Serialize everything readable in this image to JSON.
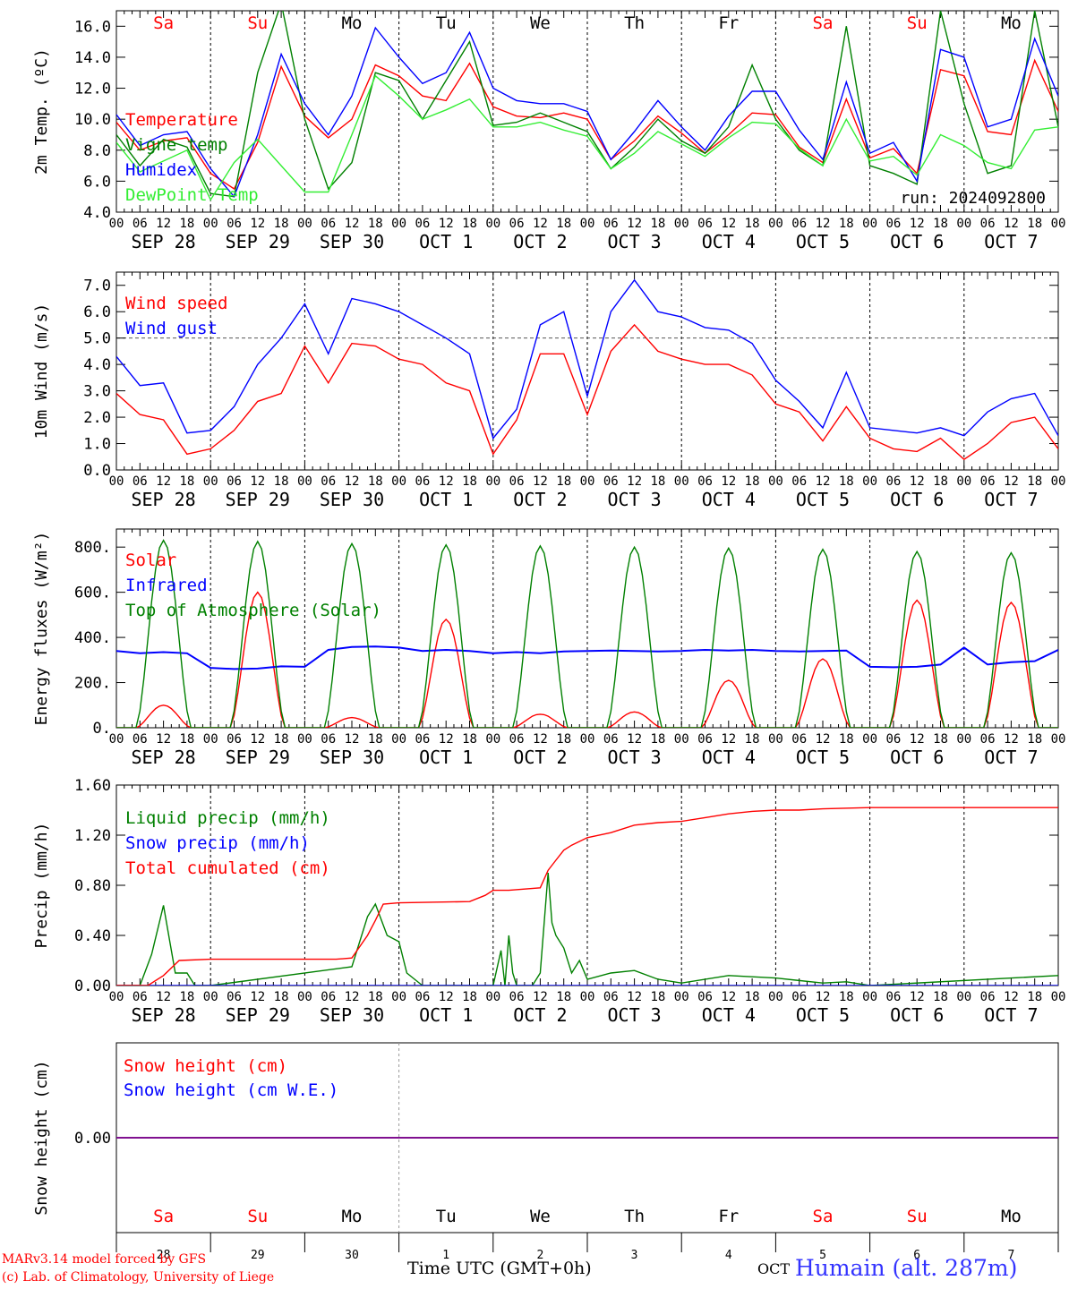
{
  "run_label": "run: 2024092800",
  "station_label": "Humain (alt. 287m)",
  "month_label": "OCT",
  "xlabel": "Time UTC (GMT+0h)",
  "credit_lines": [
    "MARv3.14 model forced by GFS",
    "(c) Lab. of Climatology, University of Liege"
  ],
  "colors": {
    "red": "#ff0000",
    "blue": "#0000ff",
    "darkgreen": "#008000",
    "lightgreen": "#33ee33",
    "purple": "#800080"
  },
  "days": [
    {
      "abbr": "Sa",
      "date": "SEP 28",
      "num": "28",
      "weekend": true
    },
    {
      "abbr": "Su",
      "date": "SEP 29",
      "num": "29",
      "weekend": true
    },
    {
      "abbr": "Mo",
      "date": "SEP 30",
      "num": "30",
      "weekend": false
    },
    {
      "abbr": "Tu",
      "date": "OCT  1",
      "num": "1",
      "weekend": false
    },
    {
      "abbr": "We",
      "date": "OCT  2",
      "num": "2",
      "weekend": false
    },
    {
      "abbr": "Th",
      "date": "OCT  3",
      "num": "3",
      "weekend": false
    },
    {
      "abbr": "Fr",
      "date": "OCT  4",
      "num": "4",
      "weekend": false
    },
    {
      "abbr": "Sa",
      "date": "OCT  5",
      "num": "5",
      "weekend": true
    },
    {
      "abbr": "Su",
      "date": "OCT  6",
      "num": "6",
      "weekend": true
    },
    {
      "abbr": "Mo",
      "date": "OCT  7",
      "num": "7",
      "weekend": false
    }
  ],
  "hour_ticks": [
    "00",
    "06",
    "12",
    "18"
  ],
  "chart_data": [
    {
      "type": "line",
      "ylabel": "2m Temp. (ºC)",
      "ylim": [
        4,
        17
      ],
      "yticks": [
        4,
        6,
        8,
        10,
        12,
        14,
        16
      ],
      "ytick_labels": [
        "4.0",
        "6.0",
        "8.0",
        "10.0",
        "12.0",
        "14.0",
        "16.0"
      ],
      "x_unit": "hours since SEP 28 00 UTC",
      "series": [
        {
          "name": "Temperature",
          "color": "#ff0000",
          "x": [
            0,
            6,
            12,
            18,
            24,
            30,
            36,
            42,
            48,
            54,
            60,
            66,
            72,
            78,
            84,
            90,
            96,
            102,
            108,
            114,
            120,
            126,
            132,
            138,
            144,
            150,
            156,
            162,
            168,
            174,
            180,
            186,
            192,
            198,
            204,
            210,
            216,
            222,
            228,
            234,
            240
          ],
          "y": [
            9.8,
            8.0,
            8.6,
            8.8,
            6.5,
            5.5,
            8.5,
            13.4,
            10.2,
            8.8,
            10.0,
            13.5,
            12.8,
            11.5,
            11.2,
            13.6,
            10.8,
            10.2,
            10.1,
            10.4,
            10.0,
            7.4,
            8.6,
            10.2,
            9.1,
            7.8,
            9.0,
            10.4,
            10.3,
            8.2,
            7.2,
            11.3,
            7.5,
            8.1,
            6.5,
            13.2,
            12.8,
            9.2,
            9.0,
            13.8,
            10.5
          ]
        },
        {
          "name": "Vigne temp",
          "color": "#008000",
          "x": [
            0,
            6,
            12,
            18,
            24,
            30,
            36,
            42,
            48,
            54,
            60,
            66,
            72,
            78,
            84,
            90,
            96,
            102,
            108,
            114,
            120,
            126,
            132,
            138,
            144,
            150,
            156,
            162,
            168,
            174,
            180,
            186,
            192,
            198,
            204,
            210,
            216,
            222,
            228,
            234,
            240
          ],
          "y": [
            9.0,
            7.0,
            8.7,
            8.2,
            5.2,
            5.0,
            13.0,
            17.5,
            10.0,
            5.5,
            7.2,
            13.0,
            12.5,
            10.0,
            12.5,
            15.0,
            9.6,
            9.8,
            10.4,
            9.8,
            9.2,
            6.8,
            8.2,
            10.0,
            8.6,
            7.8,
            9.5,
            13.5,
            10.0,
            8.0,
            7.0,
            16.0,
            7.0,
            6.5,
            5.8,
            17.0,
            11.0,
            6.5,
            7.0,
            17.0,
            9.5
          ]
        },
        {
          "name": "Humidex",
          "color": "#0000ff",
          "x": [
            0,
            6,
            12,
            18,
            24,
            30,
            36,
            42,
            48,
            54,
            60,
            66,
            72,
            78,
            84,
            90,
            96,
            102,
            108,
            114,
            120,
            126,
            132,
            138,
            144,
            150,
            156,
            162,
            168,
            174,
            180,
            186,
            192,
            198,
            204,
            210,
            216,
            222,
            228,
            234,
            240
          ],
          "y": [
            10.3,
            8.3,
            9.0,
            9.2,
            6.8,
            5.0,
            9.0,
            14.2,
            11.0,
            9.0,
            11.5,
            15.9,
            14.0,
            12.3,
            13.0,
            15.6,
            12.0,
            11.2,
            11.0,
            11.0,
            10.5,
            7.4,
            9.2,
            11.2,
            9.5,
            8.0,
            10.2,
            11.8,
            11.8,
            9.3,
            7.4,
            12.4,
            7.8,
            8.5,
            6.0,
            14.5,
            14.0,
            9.5,
            10.0,
            15.2,
            11.5
          ]
        },
        {
          "name": "DewPoint Temp",
          "color": "#33ee33",
          "x": [
            0,
            6,
            12,
            18,
            24,
            30,
            36,
            42,
            48,
            54,
            60,
            66,
            72,
            78,
            84,
            90,
            96,
            102,
            108,
            114,
            120,
            126,
            132,
            138,
            144,
            150,
            156,
            162,
            168,
            174,
            180,
            186,
            192,
            198,
            204,
            210,
            216,
            222,
            228,
            234,
            240
          ],
          "y": [
            8.5,
            6.6,
            7.3,
            8.0,
            4.8,
            7.2,
            8.7,
            7.0,
            5.3,
            5.3,
            9.0,
            12.8,
            11.5,
            10.0,
            10.6,
            11.3,
            9.5,
            9.5,
            9.8,
            9.3,
            8.9,
            6.8,
            7.8,
            9.2,
            8.4,
            7.6,
            8.8,
            9.8,
            9.7,
            8.1,
            7.0,
            10.0,
            7.3,
            7.6,
            6.4,
            9.0,
            8.3,
            7.2,
            6.8,
            9.3,
            9.5
          ]
        }
      ]
    },
    {
      "type": "line",
      "ylabel": "10m Wind (m/s)",
      "ylim": [
        0,
        7.5
      ],
      "yticks": [
        0,
        1,
        2,
        3,
        4,
        5,
        6,
        7
      ],
      "ytick_labels": [
        "0.0",
        "1.0",
        "2.0",
        "3.0",
        "4.0",
        "5.0",
        "6.0",
        "7.0"
      ],
      "ref_line": 5.0,
      "x_unit": "hours since SEP 28 00 UTC",
      "series": [
        {
          "name": "Wind speed",
          "color": "#ff0000",
          "x": [
            0,
            6,
            12,
            18,
            24,
            30,
            36,
            42,
            48,
            54,
            60,
            66,
            72,
            78,
            84,
            90,
            96,
            102,
            108,
            114,
            120,
            126,
            132,
            138,
            144,
            150,
            156,
            162,
            168,
            174,
            180,
            186,
            192,
            198,
            204,
            210,
            216,
            222,
            228,
            234,
            240
          ],
          "y": [
            2.9,
            2.1,
            1.9,
            0.6,
            0.8,
            1.5,
            2.6,
            2.9,
            4.7,
            3.3,
            4.8,
            4.7,
            4.2,
            4.0,
            3.3,
            3.0,
            0.6,
            1.9,
            4.4,
            4.4,
            2.1,
            4.5,
            5.5,
            4.5,
            4.2,
            4.0,
            4.0,
            3.6,
            2.5,
            2.2,
            1.1,
            2.4,
            1.2,
            0.8,
            0.7,
            1.2,
            0.4,
            1.0,
            1.8,
            2.0,
            0.8
          ]
        },
        {
          "name": "Wind gust",
          "color": "#0000ff",
          "x": [
            0,
            6,
            12,
            18,
            24,
            30,
            36,
            42,
            48,
            54,
            60,
            66,
            72,
            78,
            84,
            90,
            96,
            102,
            108,
            114,
            120,
            126,
            132,
            138,
            144,
            150,
            156,
            162,
            168,
            174,
            180,
            186,
            192,
            198,
            204,
            210,
            216,
            222,
            228,
            234,
            240
          ],
          "y": [
            4.3,
            3.2,
            3.3,
            1.4,
            1.5,
            2.4,
            4.0,
            5.0,
            6.3,
            4.4,
            6.5,
            6.3,
            6.0,
            5.5,
            5.0,
            4.4,
            1.2,
            2.3,
            5.5,
            6.0,
            2.8,
            6.0,
            7.2,
            6.0,
            5.8,
            5.4,
            5.3,
            4.8,
            3.4,
            2.6,
            1.6,
            3.7,
            1.6,
            1.5,
            1.4,
            1.6,
            1.3,
            2.2,
            2.7,
            2.9,
            1.3
          ]
        }
      ]
    },
    {
      "type": "line",
      "ylabel": "Energy fluxes (W/m²)",
      "ylim": [
        0,
        880
      ],
      "yticks": [
        0,
        200,
        400,
        600,
        800
      ],
      "ytick_labels": [
        "0.",
        "200.",
        "400.",
        "600.",
        "800."
      ],
      "x_unit": "hours since SEP 28 00 UTC",
      "series": [
        {
          "name": "Solar",
          "color": "#ff0000",
          "day_peaks": [
            100,
            600,
            45,
            480,
            60,
            70,
            210,
            305,
            565,
            555
          ]
        },
        {
          "name": "Infrared",
          "color": "#0000ff",
          "x": [
            0,
            6,
            12,
            18,
            24,
            30,
            36,
            42,
            48,
            54,
            60,
            66,
            72,
            78,
            84,
            90,
            96,
            102,
            108,
            114,
            120,
            126,
            132,
            138,
            144,
            150,
            156,
            162,
            168,
            174,
            180,
            186,
            192,
            198,
            204,
            210,
            216,
            222,
            228,
            234,
            240
          ],
          "y": [
            340,
            330,
            335,
            330,
            265,
            260,
            262,
            272,
            270,
            345,
            358,
            360,
            355,
            340,
            345,
            340,
            330,
            335,
            330,
            338,
            340,
            342,
            340,
            338,
            340,
            345,
            342,
            345,
            340,
            338,
            340,
            342,
            270,
            268,
            270,
            280,
            355,
            280,
            290,
            295,
            345
          ]
        },
        {
          "name": "Top of Atmosphere (Solar)",
          "color": "#008000",
          "day_peaks": [
            830,
            825,
            815,
            810,
            805,
            800,
            795,
            790,
            780,
            775
          ]
        }
      ]
    },
    {
      "type": "line",
      "ylabel": "Precip (mm/h)",
      "ylim": [
        0,
        1.6
      ],
      "yticks": [
        0,
        0.4,
        0.8,
        1.2,
        1.6
      ],
      "ytick_labels": [
        "0.00",
        "0.40",
        "0.80",
        "1.20",
        "1.60"
      ],
      "x_unit": "hours since SEP 28 00 UTC",
      "series": [
        {
          "name": "Liquid precip (mm/h)",
          "color": "#008000",
          "x": [
            0,
            6,
            9,
            12,
            15,
            18,
            20,
            24,
            60,
            64,
            66,
            69,
            72,
            74,
            76,
            78,
            80,
            96,
            98,
            99,
            100,
            101,
            102,
            106,
            108,
            110,
            111,
            112,
            114,
            116,
            118,
            120,
            126,
            132,
            138,
            144,
            156,
            168,
            180,
            186,
            192,
            240
          ],
          "y": [
            0,
            0,
            0.25,
            0.64,
            0.1,
            0.1,
            0,
            0,
            0.15,
            0.55,
            0.65,
            0.4,
            0.35,
            0.1,
            0.05,
            0,
            0,
            0,
            0.28,
            0,
            0.4,
            0.1,
            0,
            0,
            0.1,
            0.9,
            0.5,
            0.4,
            0.3,
            0.1,
            0.2,
            0.05,
            0.1,
            0.12,
            0.05,
            0.02,
            0.08,
            0.06,
            0.02,
            0.03,
            0,
            0.08
          ]
        },
        {
          "name": "Snow precip (mm/h)",
          "color": "#0000ff",
          "x": [
            0,
            240
          ],
          "y": [
            0,
            0
          ]
        },
        {
          "name": "Total cumulated (cm)",
          "color": "#ff0000",
          "x": [
            0,
            8,
            12,
            16,
            24,
            48,
            56,
            60,
            64,
            66,
            68,
            72,
            90,
            94,
            96,
            100,
            108,
            110,
            112,
            114,
            116,
            120,
            126,
            132,
            138,
            144,
            150,
            156,
            162,
            168,
            174,
            180,
            192,
            240
          ],
          "y": [
            0,
            0,
            0.08,
            0.2,
            0.21,
            0.21,
            0.21,
            0.22,
            0.4,
            0.52,
            0.65,
            0.66,
            0.67,
            0.72,
            0.76,
            0.76,
            0.78,
            0.92,
            1.0,
            1.08,
            1.12,
            1.18,
            1.22,
            1.28,
            1.3,
            1.31,
            1.34,
            1.37,
            1.39,
            1.4,
            1.4,
            1.41,
            1.42,
            1.42
          ]
        }
      ]
    },
    {
      "type": "line",
      "ylabel": "Snow height (cm)",
      "ylim": [
        -1,
        1
      ],
      "yticks": [
        0
      ],
      "ytick_labels": [
        "0.00"
      ],
      "x_unit": "hours since SEP 28 00 UTC",
      "series": [
        {
          "name": "Snow height (cm)",
          "color": "#ff0000",
          "x": [
            0,
            240
          ],
          "y": [
            0,
            0
          ]
        },
        {
          "name": "Snow height (cm W.E.)",
          "color": "#0000ff",
          "x": [
            0,
            240
          ],
          "y": [
            0,
            0
          ]
        }
      ]
    }
  ]
}
